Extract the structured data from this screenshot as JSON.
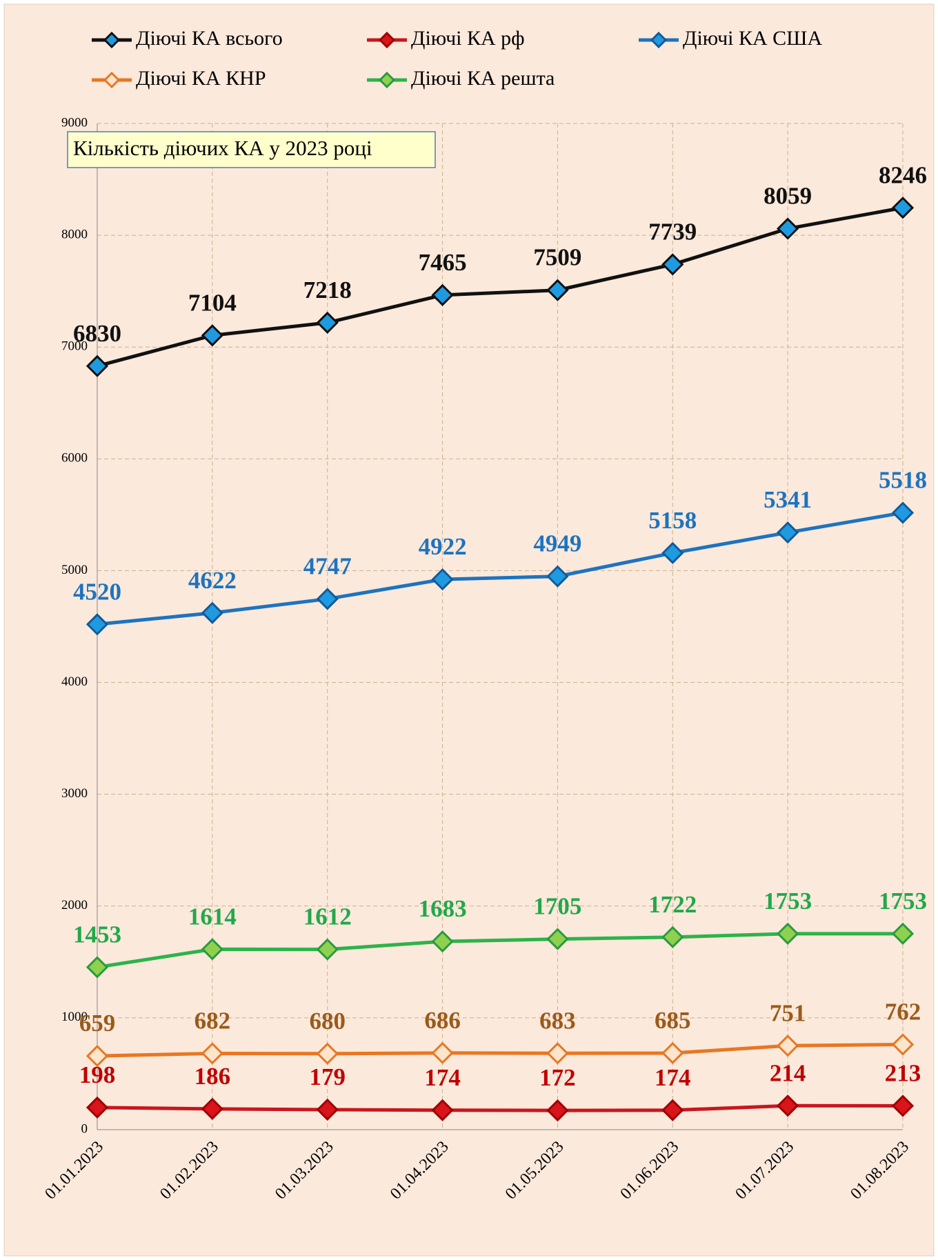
{
  "chart_data": {
    "type": "line",
    "annotation": "Кількість діючих КА у 2023 році",
    "categories": [
      "01.01.2023",
      "01.02.2023",
      "01.03.2023",
      "01.04.2023",
      "01.05.2023",
      "01.06.2023",
      "01.07.2023",
      "01.08.2023"
    ],
    "series": [
      {
        "name": "Діючі КА всього",
        "color": "#111111",
        "marker_fill": "#1e9be0",
        "marker_stroke": "#111111",
        "label_color": "#111111",
        "values": [
          6830,
          7104,
          7218,
          7465,
          7509,
          7739,
          8059,
          8246
        ]
      },
      {
        "name": "Діючі КА рф",
        "color": "#c8161d",
        "marker_fill": "#d9141b",
        "marker_stroke": "#a00000",
        "label_color": "#c00000",
        "values": [
          198,
          186,
          179,
          174,
          172,
          174,
          214,
          213
        ]
      },
      {
        "name": "Діючі КА США",
        "color": "#1e73be",
        "marker_fill": "#1e9be0",
        "marker_stroke": "#145a9a",
        "label_color": "#1e73be",
        "values": [
          4520,
          4622,
          4747,
          4922,
          4949,
          5158,
          5341,
          5518
        ]
      },
      {
        "name": "Діючі КА КНР",
        "color": "#e87722",
        "marker_fill": "#fde4cc",
        "marker_stroke": "#e87722",
        "label_color": "#9b5a1a",
        "values": [
          659,
          682,
          680,
          686,
          683,
          685,
          751,
          762
        ]
      },
      {
        "name": "Діючі КА решта",
        "color": "#2db34a",
        "marker_fill": "#8fd14f",
        "marker_stroke": "#2a9a40",
        "label_color": "#22a84a",
        "values": [
          1453,
          1614,
          1612,
          1683,
          1705,
          1722,
          1753,
          1753
        ]
      }
    ],
    "ylim": [
      0,
      9000
    ],
    "yticks": [
      0,
      1000,
      2000,
      3000,
      4000,
      5000,
      6000,
      7000,
      8000,
      9000
    ],
    "grid": true
  }
}
